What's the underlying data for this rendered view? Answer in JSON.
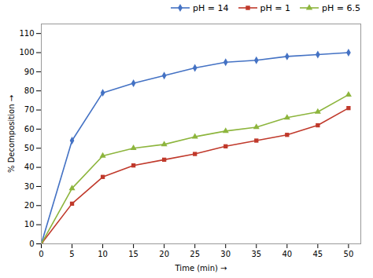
{
  "chart_data": {
    "type": "line",
    "xlabel": "Time (min)",
    "ylabel": "% Decomposition",
    "x": [
      0,
      5,
      10,
      15,
      20,
      25,
      30,
      35,
      40,
      45,
      50
    ],
    "series": [
      {
        "name": "pH = 14",
        "color": "#4472c4",
        "marker": "diamond",
        "values": [
          0,
          54,
          79,
          84,
          88,
          92,
          95,
          96,
          98,
          99,
          100
        ]
      },
      {
        "name": "pH = 1",
        "color": "#c0392b",
        "marker": "square",
        "values": [
          0,
          21,
          35,
          41,
          44,
          47,
          51,
          54,
          57,
          62,
          71
        ]
      },
      {
        "name": "pH = 6.5",
        "color": "#8db53d",
        "marker": "triangle",
        "values": [
          0,
          29,
          46,
          50,
          52,
          56,
          59,
          61,
          66,
          69,
          78
        ]
      }
    ],
    "xlim": [
      0,
      52
    ],
    "ylim": [
      0,
      115
    ],
    "xticks": [
      0,
      5,
      10,
      15,
      20,
      25,
      30,
      35,
      40,
      45,
      50
    ],
    "yticks": [
      0,
      10,
      20,
      30,
      40,
      50,
      60,
      70,
      80,
      90,
      100,
      110
    ],
    "grid": false,
    "legend": "upper right"
  }
}
